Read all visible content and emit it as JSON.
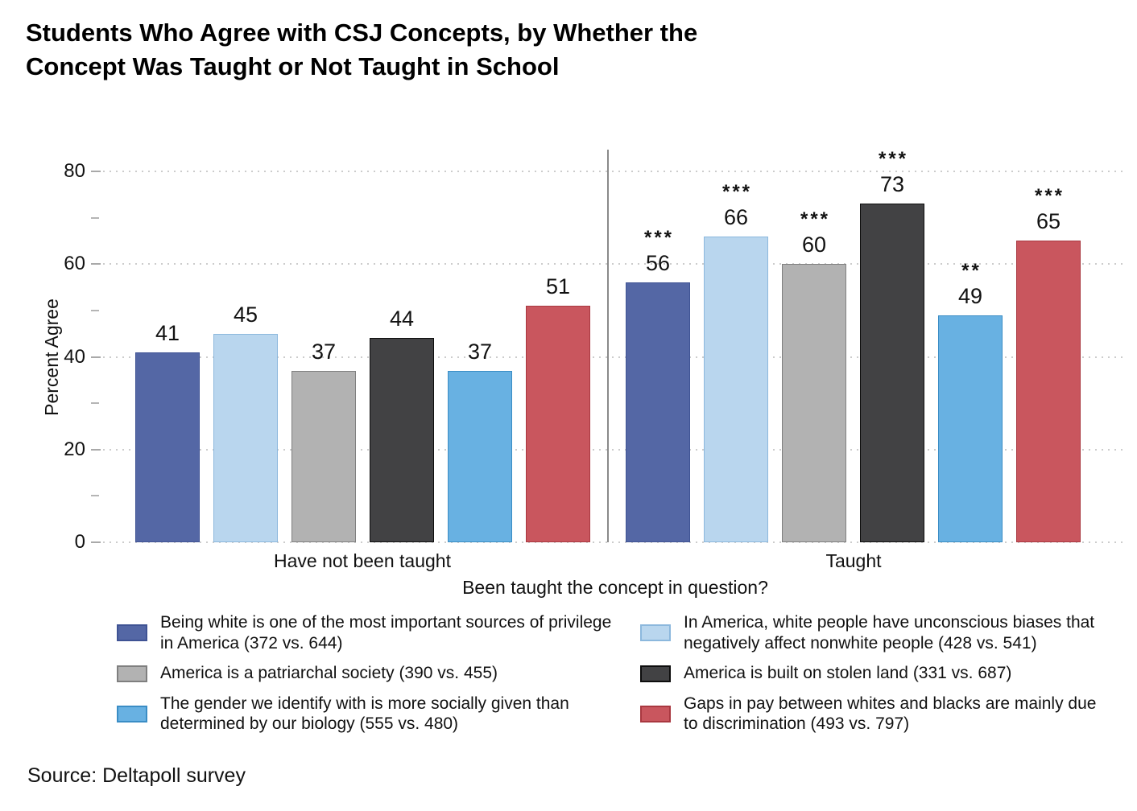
{
  "title": {
    "full": "Students Who Agree with CSJ Concepts, by Whether the Concept Was Taught or Not Taught in School",
    "line1": "Students Who Agree with CSJ Concepts, by Whether the",
    "line2": "Concept Was Taught or Not Taught in School"
  },
  "source": "Source: Deltapoll survey",
  "chart_data": {
    "type": "bar",
    "title": "Students Who Agree with CSJ Concepts, by Whether the Concept Was Taught or Not Taught in School",
    "xlabel": "Been taught the concept in question?",
    "ylabel": "Percent Agree",
    "ylim": [
      0,
      85
    ],
    "yticks": [
      0,
      20,
      40,
      60,
      80
    ],
    "minor_yticks": [
      10,
      30,
      50,
      70
    ],
    "grid": "horizontal dotted",
    "legend_position": "bottom, two columns",
    "categories": [
      "Have not been taught",
      "Taught"
    ],
    "series": [
      {
        "name": "Being white is one of the most important sources of privilege in America (372 vs. 644)",
        "legend_lines": [
          "Being white is one of the most important sources of privilege",
          "in America (372 vs. 644)"
        ],
        "color": "#5467a5",
        "border": "#3f5394",
        "values": [
          41,
          56
        ],
        "significance": [
          "",
          "***"
        ]
      },
      {
        "name": "In America, white people have unconscious biases that negatively affect nonwhite people (428 vs. 541)",
        "legend_lines": [
          "In America, white people have unconscious biases that",
          "negatively affect nonwhite people (428 vs. 541)"
        ],
        "color": "#b9d6ee",
        "border": "#8cb8dd",
        "values": [
          45,
          66
        ],
        "significance": [
          "",
          "***"
        ]
      },
      {
        "name": "America is a patriarchal society (390 vs. 455)",
        "legend_lines": [
          "America is a patriarchal society (390 vs. 455)"
        ],
        "color": "#b2b2b2",
        "border": "#7f7f7f",
        "values": [
          37,
          60
        ],
        "significance": [
          "",
          "***"
        ]
      },
      {
        "name": "America is built on stolen land (331 vs. 687)",
        "legend_lines": [
          "America is built on stolen land (331 vs. 687)"
        ],
        "color": "#424244",
        "border": "#0d0d0d",
        "values": [
          44,
          73
        ],
        "significance": [
          "",
          "***"
        ]
      },
      {
        "name": "The gender we identify with is more socially given than determined by our biology (555 vs. 480)",
        "legend_lines": [
          "The gender we identify with is more socially given than",
          "determined by our biology (555 vs. 480)"
        ],
        "color": "#68b1e2",
        "border": "#3a8dc5",
        "values": [
          37,
          49
        ],
        "significance": [
          "",
          "**"
        ]
      },
      {
        "name": "Gaps in pay between whites and blacks are mainly due to discrimination (493 vs. 797)",
        "legend_lines": [
          "Gaps in pay between whites and blacks are mainly due",
          "to discrimination (493 vs. 797)"
        ],
        "color": "#c9565e",
        "border": "#a93840",
        "values": [
          51,
          65
        ],
        "significance": [
          "",
          "***"
        ]
      }
    ]
  }
}
